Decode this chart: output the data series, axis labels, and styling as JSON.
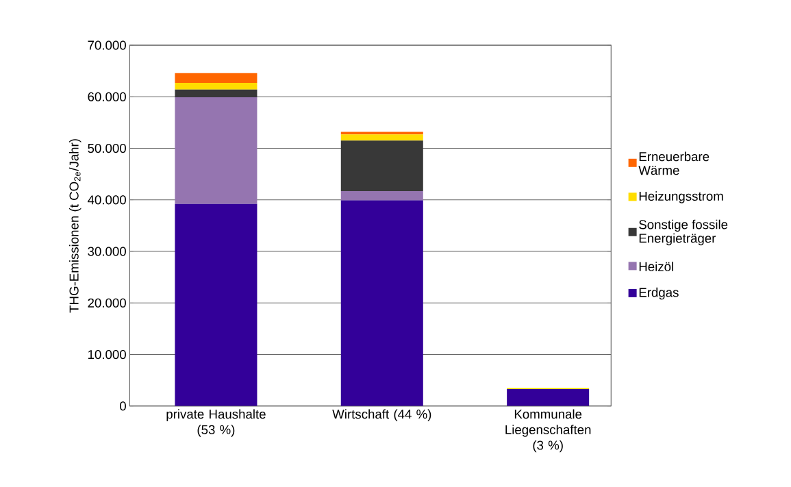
{
  "chart_data": {
    "type": "bar",
    "stacked": true,
    "ylabel": "THG-Emissionen (t CO$_{2e}$/Jahr)",
    "categories": [
      "private Haushalte (53 %)",
      "Wirtschaft (44 %)",
      "Kommunale Liegenschaften (3 %)"
    ],
    "series": [
      {
        "name": "Erdgas",
        "color": "#330099",
        "values": [
          39200,
          39900,
          3300
        ]
      },
      {
        "name": "Heizöl",
        "color": "#9575b0",
        "values": [
          20700,
          1800,
          0
        ]
      },
      {
        "name": "Sonstige fossile Energieträger",
        "color": "#383838",
        "values": [
          1500,
          9800,
          0
        ]
      },
      {
        "name": "Heizungsstrom",
        "color": "#ffdd00",
        "values": [
          1300,
          1200,
          200
        ]
      },
      {
        "name": "Erneuerbare Wärme",
        "color": "#ff6600",
        "values": [
          1900,
          500,
          0
        ]
      }
    ],
    "ylim": [
      0,
      70000
    ],
    "yticks": [
      {
        "value": 0,
        "label": "0"
      },
      {
        "value": 10000,
        "label": "10.000"
      },
      {
        "value": 20000,
        "label": "20.000"
      },
      {
        "value": 30000,
        "label": "30.000"
      },
      {
        "value": 40000,
        "label": "40.000"
      },
      {
        "value": 50000,
        "label": "50.000"
      },
      {
        "value": 60000,
        "label": "60.000"
      },
      {
        "value": 70000,
        "label": "70.000"
      }
    ],
    "grid": "y",
    "legend": "right"
  }
}
